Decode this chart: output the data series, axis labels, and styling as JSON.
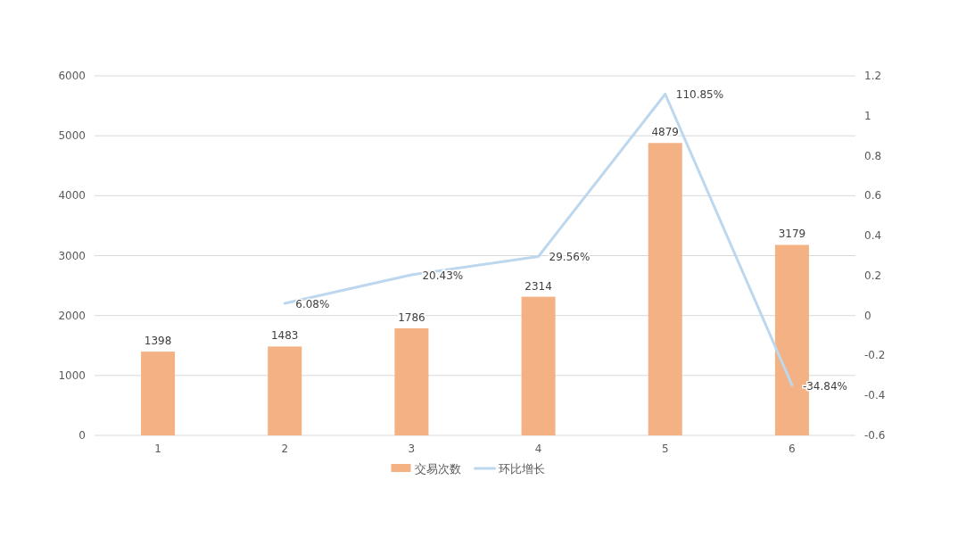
{
  "chart_data": {
    "type": "bar",
    "categories": [
      "1",
      "2",
      "3",
      "4",
      "5",
      "6"
    ],
    "series": [
      {
        "name": "交易次数",
        "axis": "y",
        "color": "#f4b183",
        "values": [
          1398,
          1483,
          1786,
          2314,
          4879,
          3179
        ],
        "value_labels": [
          "1398",
          "1483",
          "1786",
          "2314",
          "4879",
          "3179"
        ]
      },
      {
        "name": "环比增长",
        "type": "line",
        "axis": "y2",
        "color": "#bdd7ee",
        "values": [
          null,
          0.0608,
          0.2043,
          0.2956,
          1.1085,
          -0.3484
        ],
        "value_labels": [
          null,
          "6.08%",
          "20.43%",
          "29.56%",
          "110.85%",
          "-34.84%"
        ]
      }
    ],
    "ylim": [
      0,
      6000
    ],
    "yticks": [
      0,
      1000,
      2000,
      3000,
      4000,
      5000,
      6000
    ],
    "y2lim": [
      -0.6,
      1.2
    ],
    "y2ticks": [
      -0.6,
      -0.4,
      -0.2,
      0,
      0.2,
      0.4,
      0.6,
      0.8,
      1,
      1.2
    ],
    "grid": "y",
    "legend": "bottom"
  }
}
